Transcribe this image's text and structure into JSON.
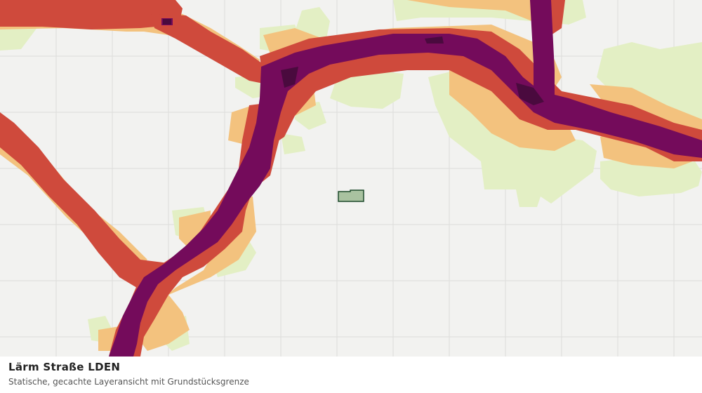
{
  "layer": {
    "title": "Lärm Straße LDEN",
    "subtitle": "Statische, gecachte Layeransicht mit Grundstücksgrenze"
  },
  "colors": {
    "background": "#f2f2f0",
    "grid": "#dcdcda",
    "noise_band_1": "#e3efc4",
    "noise_band_2": "#f3c27e",
    "noise_band_3": "#cf4a3c",
    "noise_band_4": "#740b5b",
    "noise_band_5": "#4a0a3e",
    "parcel_fill": "#a9c2a0",
    "parcel_stroke": "#1d4b2a"
  }
}
